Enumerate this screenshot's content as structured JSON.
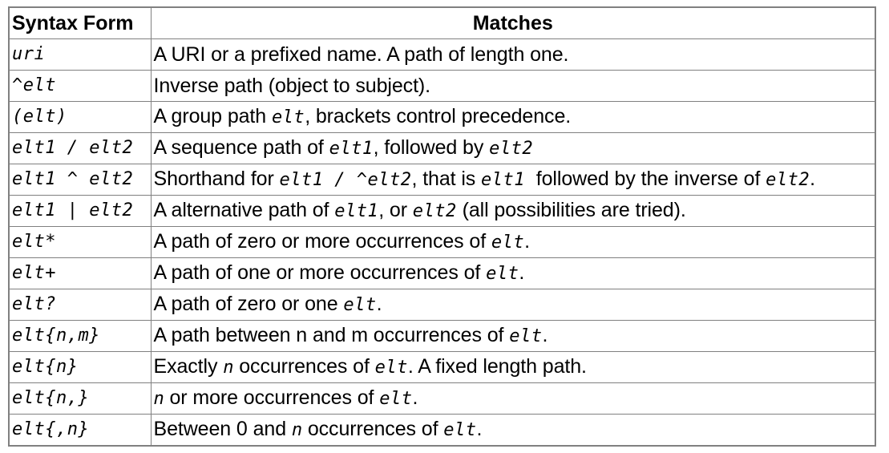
{
  "headers": {
    "syntax_form": "Syntax Form",
    "matches": "Matches"
  },
  "rows": [
    {
      "form": "uri",
      "matches": [
        {
          "t": "text",
          "v": "A URI or a prefixed name. A path of length one."
        }
      ]
    },
    {
      "form": "^elt",
      "matches": [
        {
          "t": "text",
          "v": "Inverse path (object to subject)."
        }
      ]
    },
    {
      "form": "(elt)",
      "matches": [
        {
          "t": "text",
          "v": "A group path "
        },
        {
          "t": "code",
          "v": "elt"
        },
        {
          "t": "text",
          "v": ", brackets control precedence."
        }
      ]
    },
    {
      "form": "elt1 / elt2",
      "matches": [
        {
          "t": "text",
          "v": "A sequence path of "
        },
        {
          "t": "code",
          "v": "elt1"
        },
        {
          "t": "text",
          "v": ", followed by "
        },
        {
          "t": "code",
          "v": "elt2"
        }
      ]
    },
    {
      "form": "elt1 ^ elt2",
      "matches": [
        {
          "t": "text",
          "v": "Shorthand for "
        },
        {
          "t": "code",
          "v": "elt1 / ^elt2"
        },
        {
          "t": "text",
          "v": ", that is "
        },
        {
          "t": "code",
          "v": "elt1 "
        },
        {
          "t": "text",
          "v": " followed by the inverse of "
        },
        {
          "t": "code",
          "v": "elt2"
        },
        {
          "t": "text",
          "v": "."
        }
      ]
    },
    {
      "form": "elt1 | elt2",
      "matches": [
        {
          "t": "text",
          "v": "A alternative path of "
        },
        {
          "t": "code",
          "v": "elt1"
        },
        {
          "t": "text",
          "v": ", or "
        },
        {
          "t": "code",
          "v": "elt2"
        },
        {
          "t": "text",
          "v": " (all possibilities are tried)."
        }
      ]
    },
    {
      "form": "elt*",
      "matches": [
        {
          "t": "text",
          "v": "A path of zero or more occurrences of "
        },
        {
          "t": "code",
          "v": "elt"
        },
        {
          "t": "text",
          "v": "."
        }
      ]
    },
    {
      "form": "elt+",
      "matches": [
        {
          "t": "text",
          "v": "A path of one or more occurrences of "
        },
        {
          "t": "code",
          "v": "elt"
        },
        {
          "t": "text",
          "v": "."
        }
      ]
    },
    {
      "form": "elt?",
      "matches": [
        {
          "t": "text",
          "v": "A path of zero or one "
        },
        {
          "t": "code",
          "v": "elt"
        },
        {
          "t": "text",
          "v": "."
        }
      ]
    },
    {
      "form": "elt{n,m}",
      "matches": [
        {
          "t": "text",
          "v": "A path between n and m occurrences of "
        },
        {
          "t": "code",
          "v": "elt"
        },
        {
          "t": "text",
          "v": "."
        }
      ]
    },
    {
      "form": "elt{n}",
      "matches": [
        {
          "t": "text",
          "v": "Exactly "
        },
        {
          "t": "var",
          "v": "n"
        },
        {
          "t": "text",
          "v": " occurrences of "
        },
        {
          "t": "code",
          "v": "elt"
        },
        {
          "t": "text",
          "v": ". A fixed length path."
        }
      ]
    },
    {
      "form": "elt{n,}",
      "matches": [
        {
          "t": "var",
          "v": "n"
        },
        {
          "t": "text",
          "v": " or more occurrences of "
        },
        {
          "t": "code",
          "v": "elt"
        },
        {
          "t": "text",
          "v": "."
        }
      ]
    },
    {
      "form": "elt{,n}",
      "matches": [
        {
          "t": "text",
          "v": "Between 0 and "
        },
        {
          "t": "var",
          "v": "n"
        },
        {
          "t": "text",
          "v": " occurrences of "
        },
        {
          "t": "code",
          "v": "elt"
        },
        {
          "t": "text",
          "v": "."
        }
      ]
    }
  ]
}
